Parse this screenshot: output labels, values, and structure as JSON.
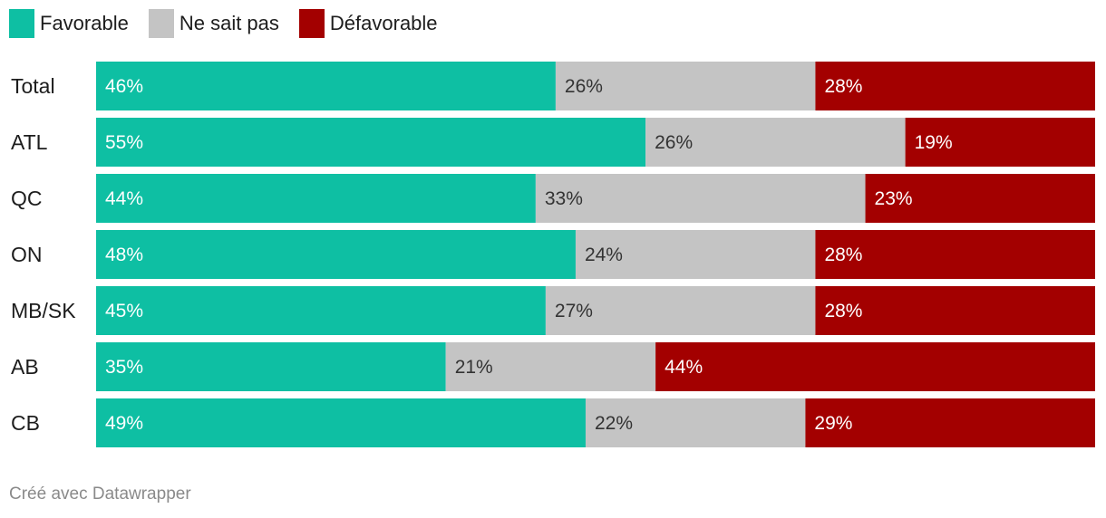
{
  "legend": {
    "items": [
      {
        "label": "Favorable",
        "color": "#0ebfa3"
      },
      {
        "label": "Ne sait pas",
        "color": "#c4c4c4"
      },
      {
        "label": "Défavorable",
        "color": "#a30000"
      }
    ]
  },
  "chart_data": {
    "type": "bar",
    "orientation": "horizontal",
    "stacked": true,
    "normalized": "percent",
    "categories": [
      "Total",
      "ATL",
      "QC",
      "ON",
      "MB/SK",
      "AB",
      "CB"
    ],
    "series": [
      {
        "name": "Favorable",
        "color": "#0ebfa3",
        "label_color": "#ffffff",
        "values": [
          46,
          55,
          44,
          48,
          45,
          35,
          49
        ]
      },
      {
        "name": "Ne sait pas",
        "color": "#c4c4c4",
        "label_color": "#333333",
        "values": [
          26,
          26,
          33,
          24,
          27,
          21,
          22
        ]
      },
      {
        "name": "Défavorable",
        "color": "#a30000",
        "label_color": "#ffffff",
        "values": [
          28,
          19,
          23,
          28,
          28,
          44,
          29
        ]
      }
    ],
    "value_suffix": "%",
    "xlim": [
      0,
      100
    ],
    "grid": false,
    "legend_position": "top-left"
  },
  "footer": {
    "credit": "Créé avec Datawrapper"
  }
}
